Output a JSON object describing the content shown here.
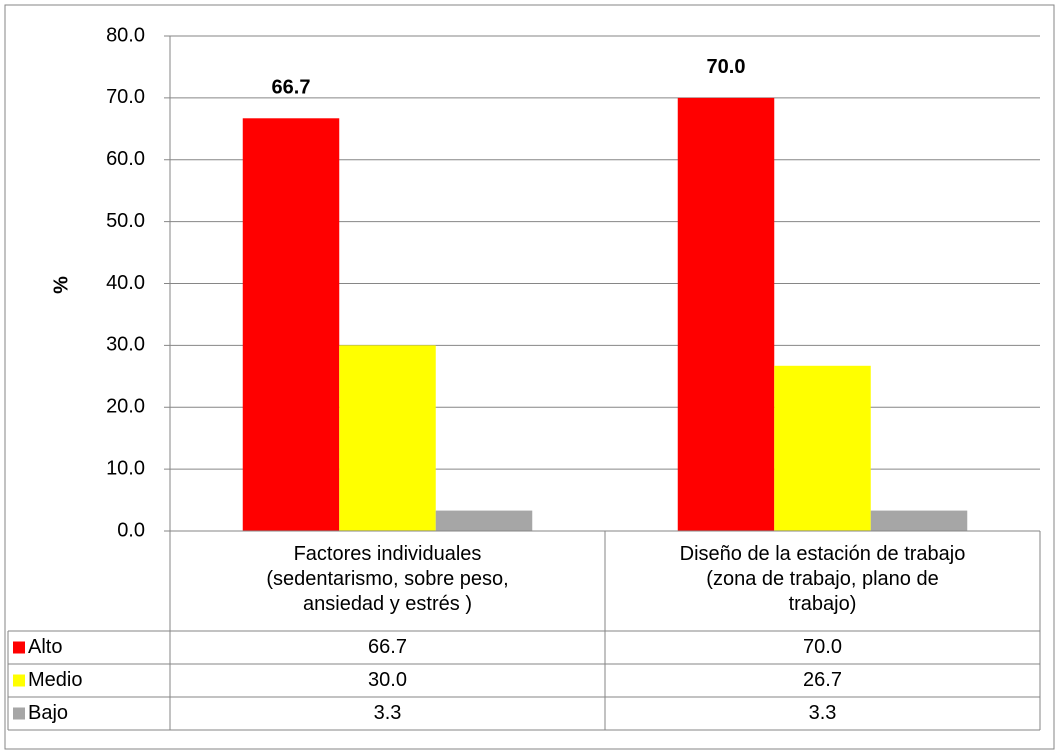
{
  "chart_data": {
    "type": "bar",
    "y_label": "%",
    "categories": [
      "Factores individuales (sedentarismo, sobre peso, ansiedad y estrés )",
      "Diseño de la estación de trabajo (zona de trabajo, plano de trabajo)"
    ],
    "series": [
      {
        "name": "Alto",
        "color": "#ff0000",
        "values": [
          66.7,
          70.0
        ],
        "value_labels": [
          "66.7",
          "70.0"
        ],
        "show_labels": true
      },
      {
        "name": "Medio",
        "color": "#ffff00",
        "values": [
          30.0,
          26.7
        ],
        "value_labels": [
          "30.0",
          "26.7"
        ],
        "show_labels": false
      },
      {
        "name": "Bajo",
        "color": "#a6a6a6",
        "values": [
          3.3,
          3.3
        ],
        "value_labels": [
          "3.3",
          "3.3"
        ],
        "show_labels": false
      }
    ],
    "ylim": [
      0,
      80
    ],
    "yticks": [
      {
        "value": 0,
        "label": "0.0"
      },
      {
        "value": 10,
        "label": "10.0"
      },
      {
        "value": 20,
        "label": "20.0"
      },
      {
        "value": 30,
        "label": "30.0"
      },
      {
        "value": 40,
        "label": "40.0"
      },
      {
        "value": 50,
        "label": "50.0"
      },
      {
        "value": 60,
        "label": "60.0"
      },
      {
        "value": 70,
        "label": "70.0"
      },
      {
        "value": 80,
        "label": "80.0"
      }
    ],
    "grid": true,
    "data_table": true
  }
}
